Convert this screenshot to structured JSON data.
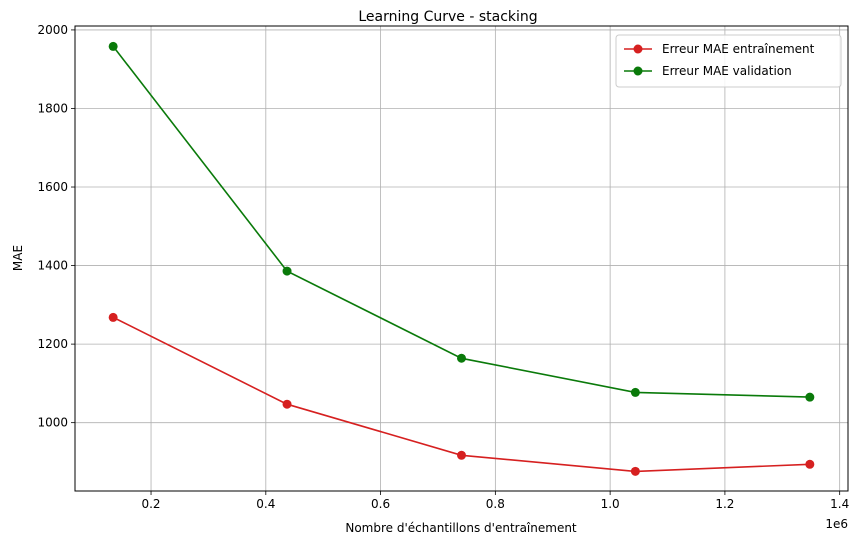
{
  "chart_data": {
    "type": "line",
    "title": "Learning Curve - stacking",
    "xlabel": "Nombre d'échantillons d'entraînement",
    "ylabel": "MAE",
    "x_offset_label": "1e6",
    "xlim": [
      0.0675,
      1.4145
    ],
    "ylim": [
      826,
      2010
    ],
    "xticks": [
      0.2,
      0.4,
      0.6,
      0.8,
      1.0,
      1.2,
      1.4
    ],
    "xtick_labels": [
      "0.2",
      "0.4",
      "0.6",
      "0.8",
      "1.0",
      "1.2",
      "1.4"
    ],
    "yticks": [
      1000,
      1200,
      1400,
      1600,
      1800,
      2000
    ],
    "ytick_labels": [
      "1000",
      "1200",
      "1400",
      "1600",
      "1800",
      "2000"
    ],
    "grid": true,
    "legend_position": "top-right",
    "x": [
      0.134,
      0.437,
      0.741,
      1.044,
      1.348
    ],
    "series": [
      {
        "name": "Erreur MAE entraînement",
        "color": "#d62020",
        "values": [
          1268,
          1047,
          917,
          876,
          894
        ]
      },
      {
        "name": "Erreur MAE validation",
        "color": "#0a7a0a",
        "values": [
          1958,
          1386,
          1164,
          1077,
          1065
        ]
      }
    ]
  }
}
